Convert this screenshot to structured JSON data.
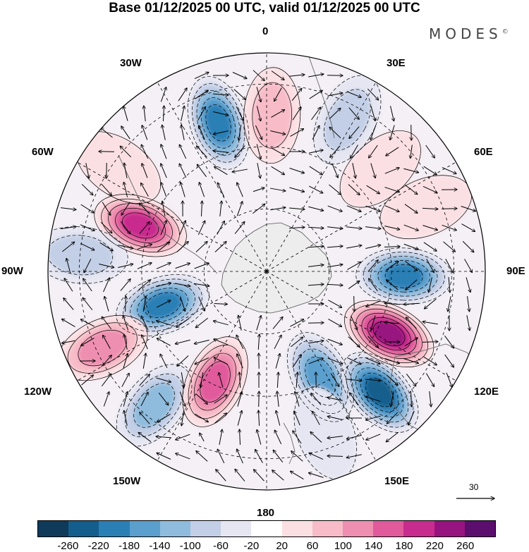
{
  "title": "Base 01/12/2025 00 UTC, valid 01/12/2025 00 UTC",
  "logo": "MODES",
  "logo_mark": "©",
  "longitude_labels": {
    "lon_0": "0",
    "lon_30e": "30E",
    "lon_60e": "60E",
    "lon_90e": "90E",
    "lon_120e": "120E",
    "lon_150e": "150E",
    "lon_180": "180",
    "lon_150w": "150W",
    "lon_120w": "120W",
    "lon_90w": "90W",
    "lon_60w": "60W",
    "lon_30w": "30W"
  },
  "reference_vector": {
    "value": "30"
  },
  "colorbar": {
    "colors": [
      "#0f3a5a",
      "#135e8c",
      "#2a7fb5",
      "#5a9fce",
      "#8fbcdd",
      "#c3cfe6",
      "#e5e6f2",
      "#ffffff",
      "#fbe0e3",
      "#f7bcc8",
      "#ee8eb0",
      "#e05a9c",
      "#c82c8e",
      "#97137f",
      "#5b0e6e"
    ],
    "ticks": [
      "-260",
      "-220",
      "-180",
      "-140",
      "-100",
      "-60",
      "-20",
      "20",
      "60",
      "100",
      "140",
      "180",
      "220",
      "260"
    ]
  },
  "map_features": {
    "projection": "south-polar-stereographic",
    "antarctica_color": "#ededed",
    "anomaly_cells": [
      {
        "lon": -18,
        "lat": -40,
        "value": -230
      },
      {
        "lon": -70,
        "lat": -47,
        "value": 200
      },
      {
        "lon": -108,
        "lat": -55,
        "value": -210
      },
      {
        "lon": -115,
        "lat": -32,
        "value": 130
      },
      {
        "lon": -140,
        "lat": -34,
        "value": -150
      },
      {
        "lon": -155,
        "lat": -51,
        "value": 170
      },
      {
        "lon": 153,
        "lat": -52,
        "value": -180
      },
      {
        "lon": 137,
        "lat": -37,
        "value": -250
      },
      {
        "lon": 117,
        "lat": -46,
        "value": 260
      },
      {
        "lon": 92,
        "lat": -46,
        "value": -200
      },
      {
        "lon": 2,
        "lat": -40,
        "value": 95
      },
      {
        "lon": 28,
        "lat": -35,
        "value": -90
      },
      {
        "lon": 48,
        "lat": -41,
        "value": 70
      },
      {
        "lon": -55,
        "lat": -32,
        "value": 75
      },
      {
        "lon": -85,
        "lat": -30,
        "value": -90
      },
      {
        "lon": 68,
        "lat": -35,
        "value": 55
      },
      {
        "lon": 160,
        "lat": -35,
        "value": -70
      }
    ]
  }
}
